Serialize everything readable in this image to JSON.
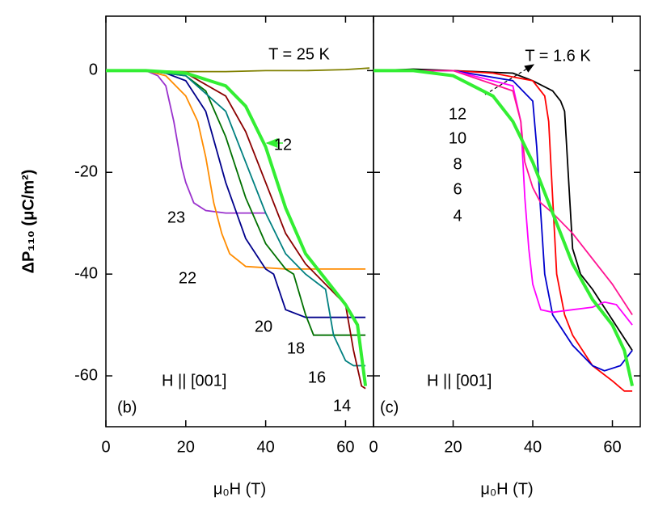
{
  "chart_data": [
    {
      "type": "line",
      "y_label": "ΔP₁₁₀ (μC/m²)",
      "x_label": "μ₀H (T)",
      "annotations": [
        "T = 25 K",
        "H || [001]",
        "(b)"
      ],
      "xlim": [
        0,
        67
      ],
      "ylim": [
        -70,
        10.7
      ],
      "xticks": [
        0,
        20,
        40,
        60
      ],
      "yticks": [
        0,
        -20,
        -40,
        -60
      ],
      "series": [
        {
          "name": "25 K",
          "color": "#808000",
          "x": [
            0,
            10,
            20,
            30,
            40,
            50,
            60,
            66
          ],
          "values": [
            0,
            0,
            -0.2,
            -0.2,
            0,
            0,
            0.2,
            0.5
          ]
        },
        {
          "name": "23",
          "color": "#9a32cd",
          "x": [
            0,
            10,
            13,
            15,
            17,
            19,
            20,
            22,
            25,
            30,
            40
          ],
          "values": [
            0,
            0,
            -1,
            -3,
            -10,
            -19,
            -22,
            -26,
            -27.5,
            -28,
            -28
          ]
        },
        {
          "name": "22",
          "color": "#ff8c00",
          "x": [
            0,
            10,
            15,
            20,
            23,
            25,
            27,
            29,
            31,
            35,
            45,
            65
          ],
          "values": [
            0,
            0,
            -1,
            -5,
            -10,
            -17,
            -26,
            -32,
            -36,
            -38.5,
            -39,
            -39
          ]
        },
        {
          "name": "20",
          "color": "#00008b",
          "x": [
            0,
            10,
            15,
            20,
            25,
            30,
            35,
            40,
            42,
            45,
            50,
            65
          ],
          "values": [
            0,
            0,
            -0.5,
            -2,
            -8,
            -22,
            -33,
            -39,
            -40,
            -47,
            -48.5,
            -48.5
          ]
        },
        {
          "name": "18",
          "color": "#007000",
          "x": [
            0,
            10,
            20,
            25,
            30,
            35,
            40,
            45,
            47,
            50,
            52,
            55,
            65
          ],
          "values": [
            0,
            0,
            -1,
            -4,
            -13,
            -25,
            -34,
            -39,
            -40,
            -48,
            -52,
            -52,
            -52
          ]
        },
        {
          "name": "16",
          "color": "#008080",
          "x": [
            0,
            10,
            20,
            30,
            35,
            40,
            45,
            50,
            55,
            57,
            60,
            62,
            65
          ],
          "values": [
            0,
            0,
            -1,
            -8,
            -18,
            -28,
            -36,
            -40,
            -43,
            -52,
            -57,
            -58,
            -58
          ]
        },
        {
          "name": "14",
          "color": "#8b0000",
          "x": [
            0,
            10,
            20,
            30,
            35,
            40,
            45,
            50,
            55,
            60,
            62,
            64,
            65
          ],
          "values": [
            0,
            0,
            -0.5,
            -5,
            -12,
            -22,
            -32,
            -38,
            -42,
            -46,
            -55,
            -62,
            -62.5
          ]
        },
        {
          "name": "12",
          "color": "#33ee33",
          "x": [
            0,
            10,
            20,
            30,
            35,
            40,
            45,
            50,
            55,
            60,
            63,
            65
          ],
          "values": [
            0,
            0,
            -0.5,
            -3,
            -7,
            -15,
            -27,
            -36,
            -41,
            -46,
            -50,
            -62
          ]
        }
      ]
    },
    {
      "type": "line",
      "x_label": "μ₀H (T)",
      "annotations": [
        "T = 1.6 K",
        "H || [001]",
        "(c)"
      ],
      "xlim": [
        0,
        67
      ],
      "ylim": [
        -70,
        10.7
      ],
      "xticks": [
        0,
        20,
        40,
        60
      ],
      "yticks": [
        0,
        -20,
        -40,
        -60
      ],
      "series": [
        {
          "name": "1.6 K",
          "color": "#000000",
          "x": [
            0,
            10,
            20,
            35,
            40,
            45,
            47,
            48,
            50,
            52,
            55,
            60,
            65
          ],
          "values": [
            0,
            0.3,
            0,
            -0.5,
            -2,
            -4,
            -6,
            -8,
            -35,
            -40,
            -43,
            -49,
            -55
          ]
        },
        {
          "name": "4",
          "color": "#ff0000",
          "x": [
            0,
            20,
            30,
            40,
            43,
            44,
            45,
            46,
            48,
            50,
            55,
            60,
            63,
            65
          ],
          "values": [
            0,
            0,
            -0.5,
            -2,
            -5,
            -10,
            -25,
            -40,
            -48,
            -52,
            -58,
            -61,
            -63,
            -63
          ]
        },
        {
          "name": "6",
          "color": "#0000cd",
          "x": [
            0,
            20,
            35,
            40,
            41,
            42,
            43,
            45,
            50,
            55,
            58,
            62,
            65
          ],
          "values": [
            0,
            0,
            -2,
            -6,
            -15,
            -28,
            -40,
            -48,
            -54,
            -58,
            -59,
            -58,
            -55
          ]
        },
        {
          "name": "8",
          "color": "#ff00ff",
          "x": [
            0,
            20,
            35,
            37,
            38,
            39,
            40,
            42,
            45,
            50,
            55,
            58,
            61,
            65
          ],
          "values": [
            0,
            0,
            -3,
            -10,
            -25,
            -35,
            -42,
            -47,
            -47.5,
            -47,
            -46.5,
            -45.5,
            -46,
            -50
          ]
        },
        {
          "name": "10",
          "color": "#ff1493",
          "x": [
            0,
            20,
            35,
            37,
            38,
            40,
            42,
            45,
            50,
            55,
            60,
            65
          ],
          "values": [
            0,
            0,
            -4,
            -10,
            -18,
            -23,
            -26,
            -28,
            -32,
            -37,
            -42,
            -48
          ]
        },
        {
          "name": "12",
          "color": "#33ee33",
          "x": [
            0,
            10,
            20,
            30,
            35,
            40,
            45,
            50,
            55,
            60,
            63,
            65
          ],
          "values": [
            0,
            0,
            -1,
            -5,
            -10,
            -18,
            -28,
            -38,
            -45,
            -50,
            -55,
            -62
          ]
        }
      ]
    }
  ]
}
